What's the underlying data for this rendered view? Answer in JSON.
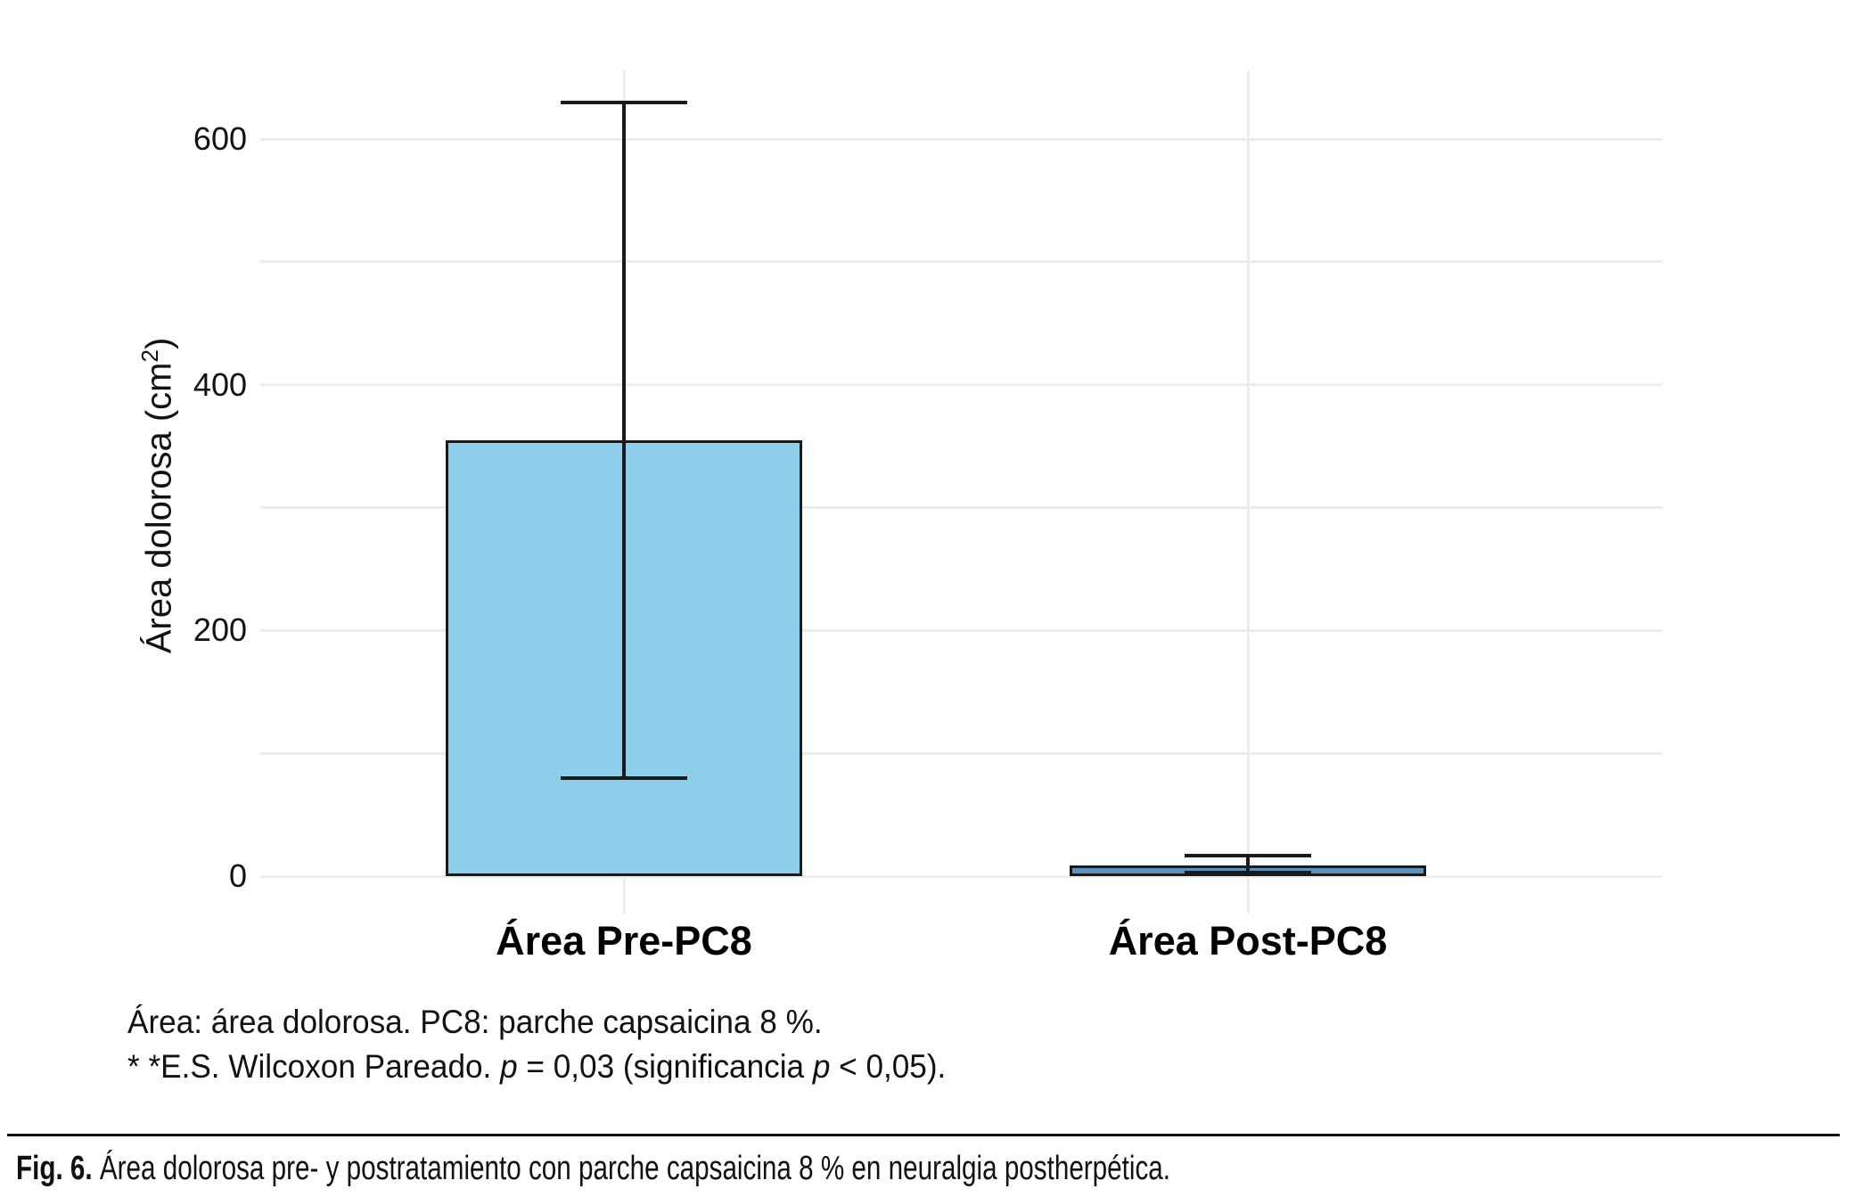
{
  "figure": {
    "footnote_line1": "Área: área dolorosa. PC8: parche capsaicina 8 %.",
    "footnote_line2_parts": {
      "a": "* *E.S. Wilcoxon Pareado. ",
      "p1": "p",
      "b": " = 0,03 (significancia ",
      "p2": "p",
      "c": " < 0,05)."
    },
    "caption_label": "Fig. 6.",
    "caption_text": " Área dolorosa pre- y postratamiento con parche capsaicina 8 % en neuralgia postherpética."
  },
  "axis": {
    "y_label_pre": "Área dolorosa (cm",
    "y_label_sup": "2",
    "y_label_post": ")"
  },
  "chart_data": {
    "type": "bar",
    "title": "",
    "xlabel": "",
    "ylabel": "Área dolorosa (cm²)",
    "categories": [
      "Área Pre-PC8",
      "Área Post-PC8"
    ],
    "values": [
      355,
      9
    ],
    "error_low": [
      80,
      3
    ],
    "error_high": [
      630,
      17
    ],
    "ylim": [
      0,
      655
    ],
    "yticks": [
      0,
      200,
      400,
      600
    ],
    "gridline_step": 100,
    "grid": true,
    "legend": "none",
    "bar_colors": [
      "#8DCEEA",
      "#5B93BE"
    ],
    "bar_border_color": "#1a1a1a",
    "error_bar_color": "#1a1a1a",
    "gridline_color": "#ececec"
  }
}
